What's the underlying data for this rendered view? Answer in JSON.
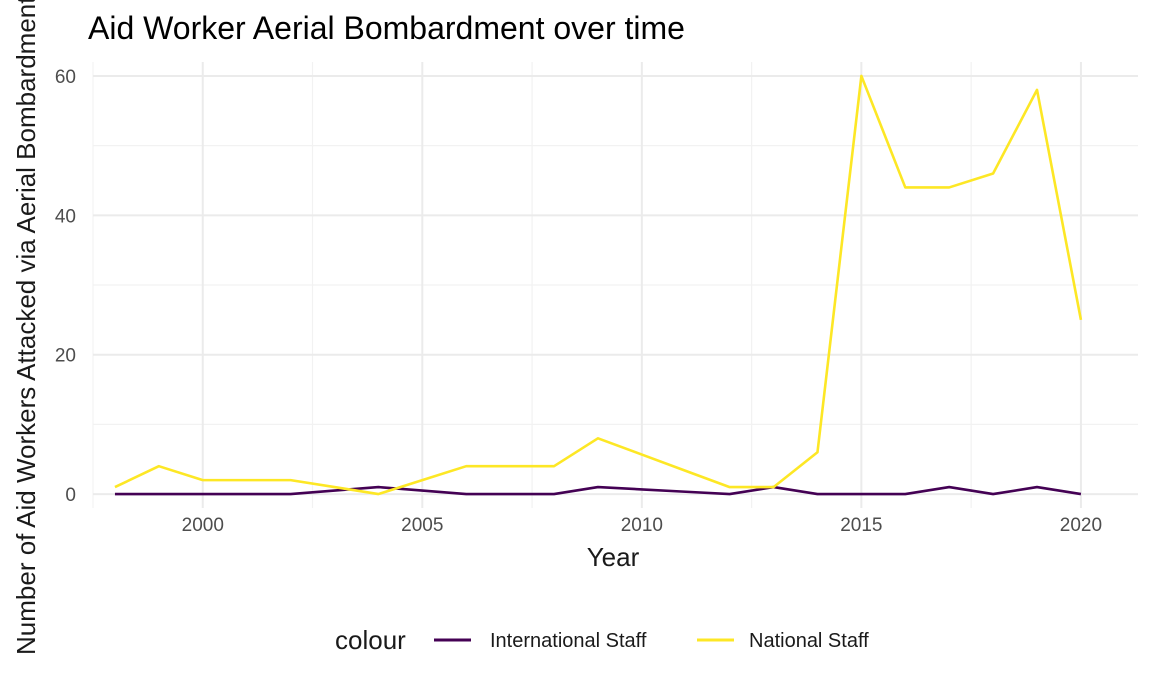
{
  "chart_data": {
    "type": "line",
    "title": "Aid Worker Aerial Bombardment over time",
    "xlabel": "Year",
    "ylabel": "Number of Aid Workers Attacked via Aerial Bombardment",
    "xlim": [
      1997.5,
      2021.3
    ],
    "ylim": [
      -2,
      62
    ],
    "x_ticks": [
      2000,
      2005,
      2010,
      2015,
      2020
    ],
    "y_ticks": [
      0,
      20,
      40,
      60
    ],
    "grid": true,
    "legend": {
      "title": "colour",
      "position": "bottom"
    },
    "x": [
      1998,
      1999,
      2000,
      2001,
      2002,
      2003,
      2004,
      2005,
      2006,
      2007,
      2008,
      2009,
      2010,
      2011,
      2012,
      2013,
      2014,
      2015,
      2016,
      2017,
      2018,
      2019,
      2020
    ],
    "series": [
      {
        "name": "International Staff",
        "color": "#440154",
        "values": [
          0,
          0,
          0,
          0,
          0,
          0.5,
          1,
          0.5,
          0,
          0,
          0,
          1,
          0.67,
          0.33,
          0,
          1,
          0,
          0,
          0,
          1,
          0,
          1,
          0
        ]
      },
      {
        "name": "National Staff",
        "color": "#FDE725",
        "values": [
          1,
          4,
          2,
          2,
          2,
          1,
          0,
          2,
          4,
          4,
          4,
          8,
          5.67,
          3.33,
          1,
          1,
          6,
          60,
          44,
          44,
          46,
          58,
          25
        ]
      }
    ]
  }
}
